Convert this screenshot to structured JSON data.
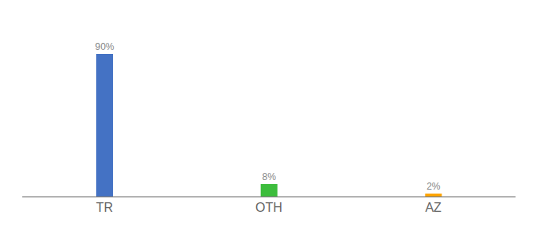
{
  "chart_data": {
    "type": "bar",
    "categories": [
      "TR",
      "OTH",
      "AZ"
    ],
    "values": [
      90,
      8,
      2
    ],
    "value_labels": [
      "90%",
      "8%",
      "2%"
    ],
    "colors": [
      "#4472C4",
      "#3DBD3D",
      "#FFA500"
    ],
    "ylim": [
      0,
      105
    ],
    "data_labels": true,
    "tick_labels": "x",
    "grid": false
  }
}
